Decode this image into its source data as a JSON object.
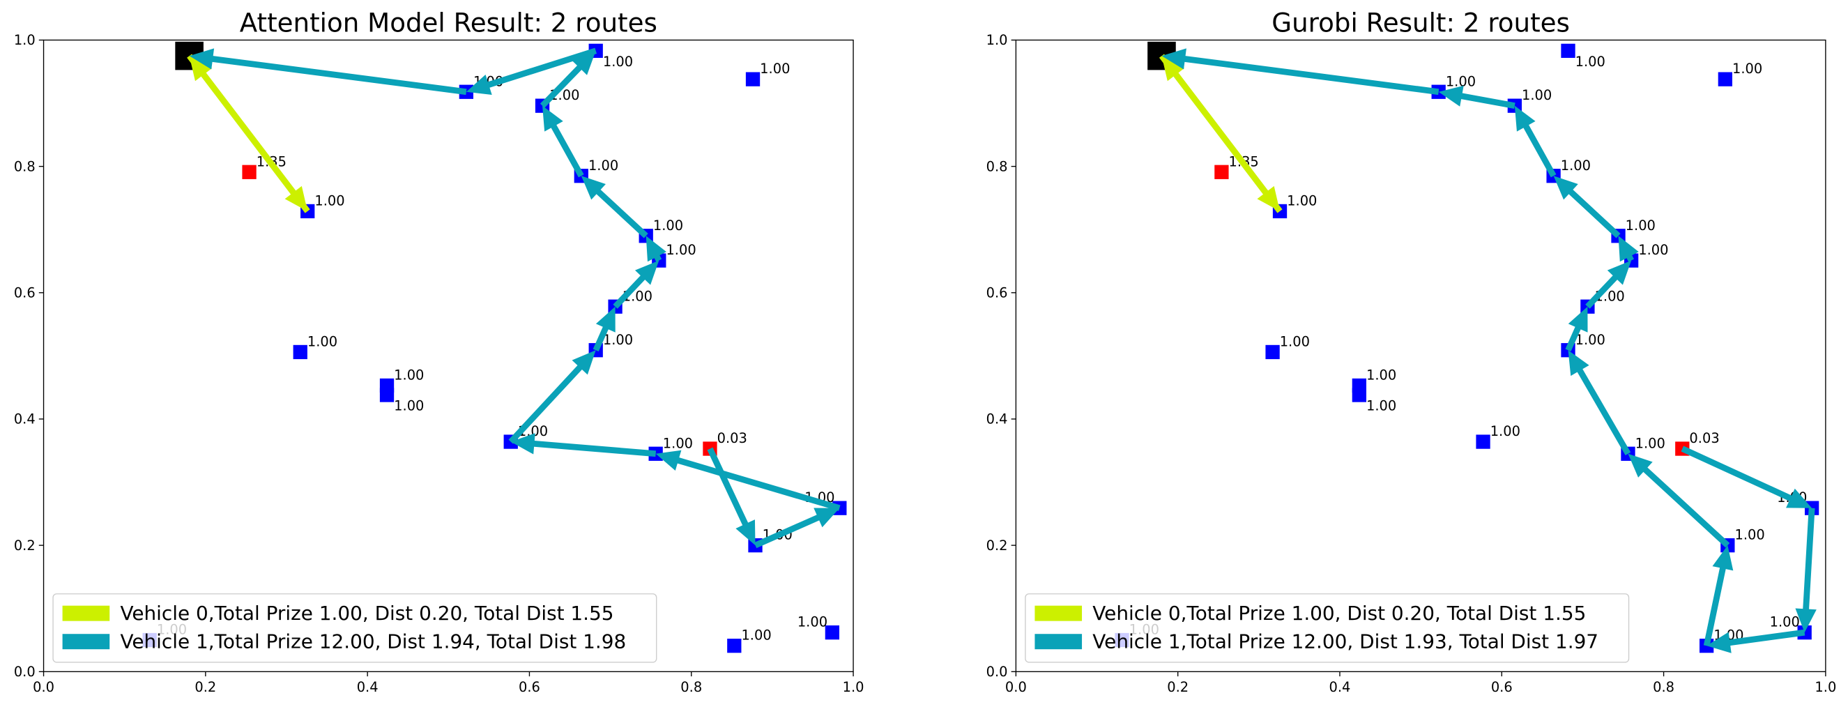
{
  "chart_data": [
    {
      "type": "route",
      "title": "Attention Model Result: 2 routes",
      "xlim": [
        0,
        1
      ],
      "ylim": [
        0,
        1
      ],
      "xticks": [
        {
          "value": 0,
          "label": "0.0"
        },
        0.2,
        0.4,
        0.6,
        0.8,
        {
          "value": 1,
          "label": "1.0"
        }
      ],
      "yticks": [
        {
          "value": 0,
          "label": "0.0"
        },
        0.2,
        0.4,
        0.6,
        0.8,
        {
          "value": 1,
          "label": "1.0"
        }
      ],
      "x": [
        0.18,
        0.254,
        0.326,
        0.522,
        0.682,
        0.876,
        0.616,
        0.664,
        0.744,
        0.76,
        0.706,
        0.682,
        0.317,
        0.424,
        0.424,
        0.577,
        0.756,
        0.823,
        0.983,
        0.879,
        0.974,
        0.853,
        0.131
      ],
      "y": [
        0.975,
        0.791,
        0.729,
        0.918,
        0.983,
        0.938,
        0.896,
        0.785,
        0.69,
        0.651,
        0.578,
        0.509,
        0.506,
        0.453,
        0.438,
        0.364,
        0.345,
        0.353,
        0.259,
        0.2,
        0.062,
        0.041,
        0.05
      ],
      "node_colors": [
        "#000000",
        "#ff0000",
        "#0000ff",
        "#0000ff",
        "#0000ff",
        "#0000ff",
        "#0000ff",
        "#0000ff",
        "#0000ff",
        "#0000ff",
        "#0000ff",
        "#0000ff",
        "#0000ff",
        "#0000ff",
        "#0000ff",
        "#0000ff",
        "#0000ff",
        "#ff0000",
        "#0000ff",
        "#0000ff",
        "#0000ff",
        "#0000ff",
        "#0000ff"
      ],
      "values": [
        null,
        1.35,
        1,
        1,
        1,
        1,
        1,
        1,
        1,
        1,
        1,
        1,
        1,
        1,
        1,
        1,
        1,
        0.03,
        1,
        1,
        1,
        1,
        1
      ],
      "value_labels": [
        null,
        "1.35",
        "1.00",
        "1.00",
        "1.00",
        "1.00",
        "1.00",
        "1.00",
        "1.00",
        "1.00",
        "1.00",
        "1.00",
        "1.00",
        "1.00",
        "1.00",
        "1.00",
        "1.00",
        "0.03",
        "1.00",
        "1.00",
        "1.00",
        "1.00",
        "1.00"
      ],
      "series": [
        {
          "name": "Vehicle 0,Total Prize 1.00, Dist 0.20, Total Dist 1.55",
          "color": "#ccf000",
          "x": [
            0.18,
            0.326,
            0.18
          ],
          "y": [
            0.975,
            0.729,
            0.975
          ]
        },
        {
          "name": "Vehicle 1,Total Prize 12.00, Dist 1.94, Total Dist 1.98",
          "color": "#0aa2b8",
          "x": [
            0.823,
            0.879,
            0.983,
            0.756,
            0.577,
            0.682,
            0.706,
            0.76,
            0.744,
            0.664,
            0.616,
            0.682,
            0.522,
            0.18
          ],
          "y": [
            0.353,
            0.2,
            0.259,
            0.345,
            0.364,
            0.509,
            0.578,
            0.651,
            0.69,
            0.785,
            0.896,
            0.983,
            0.918,
            0.975
          ]
        }
      ],
      "legend": "lower left"
    },
    {
      "type": "route",
      "title": "Gurobi Result: 2 routes",
      "xlim": [
        0,
        1
      ],
      "ylim": [
        0,
        1
      ],
      "xticks": [
        {
          "value": 0,
          "label": "0.0"
        },
        0.2,
        0.4,
        0.6,
        0.8,
        {
          "value": 1,
          "label": "1.0"
        }
      ],
      "yticks": [
        {
          "value": 0,
          "label": "0.0"
        },
        0.2,
        0.4,
        0.6,
        0.8,
        {
          "value": 1,
          "label": "1.0"
        }
      ],
      "x": [
        0.18,
        0.254,
        0.326,
        0.522,
        0.682,
        0.876,
        0.616,
        0.664,
        0.744,
        0.76,
        0.706,
        0.682,
        0.317,
        0.424,
        0.424,
        0.577,
        0.756,
        0.823,
        0.983,
        0.879,
        0.974,
        0.853,
        0.131
      ],
      "y": [
        0.975,
        0.791,
        0.729,
        0.918,
        0.983,
        0.938,
        0.896,
        0.785,
        0.69,
        0.651,
        0.578,
        0.509,
        0.506,
        0.453,
        0.438,
        0.364,
        0.345,
        0.353,
        0.259,
        0.2,
        0.062,
        0.041,
        0.05
      ],
      "node_colors": [
        "#000000",
        "#ff0000",
        "#0000ff",
        "#0000ff",
        "#0000ff",
        "#0000ff",
        "#0000ff",
        "#0000ff",
        "#0000ff",
        "#0000ff",
        "#0000ff",
        "#0000ff",
        "#0000ff",
        "#0000ff",
        "#0000ff",
        "#0000ff",
        "#0000ff",
        "#ff0000",
        "#0000ff",
        "#0000ff",
        "#0000ff",
        "#0000ff",
        "#0000ff"
      ],
      "values": [
        null,
        1.35,
        1,
        1,
        1,
        1,
        1,
        1,
        1,
        1,
        1,
        1,
        1,
        1,
        1,
        1,
        1,
        0.03,
        1,
        1,
        1,
        1,
        1
      ],
      "value_labels": [
        null,
        "1.35",
        "1.00",
        "1.00",
        "1.00",
        "1.00",
        "1.00",
        "1.00",
        "1.00",
        "1.00",
        "1.00",
        "1.00",
        "1.00",
        "1.00",
        "1.00",
        "1.00",
        "1.00",
        "0.03",
        "1.00",
        "1.00",
        "1.00",
        "1.00",
        "1.00"
      ],
      "series": [
        {
          "name": "Vehicle 0,Total Prize 1.00, Dist 0.20, Total Dist 1.55",
          "color": "#ccf000",
          "x": [
            0.18,
            0.326,
            0.18
          ],
          "y": [
            0.975,
            0.729,
            0.975
          ]
        },
        {
          "name": "Vehicle 1,Total Prize 12.00, Dist 1.93, Total Dist 1.97",
          "color": "#0aa2b8",
          "x": [
            0.823,
            0.983,
            0.974,
            0.853,
            0.879,
            0.756,
            0.682,
            0.706,
            0.76,
            0.744,
            0.664,
            0.616,
            0.522,
            0.18
          ],
          "y": [
            0.353,
            0.259,
            0.062,
            0.041,
            0.2,
            0.345,
            0.509,
            0.578,
            0.651,
            0.69,
            0.785,
            0.896,
            0.918,
            0.975
          ]
        }
      ],
      "legend": "lower left"
    }
  ]
}
